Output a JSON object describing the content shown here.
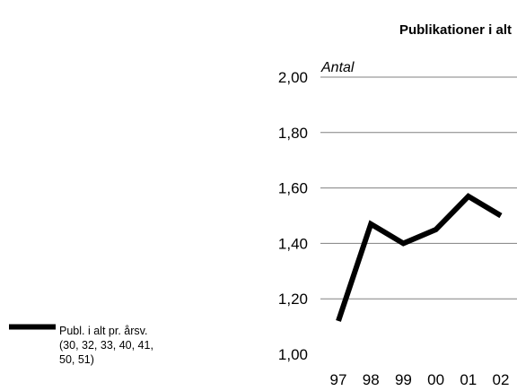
{
  "chart_data": {
    "type": "line",
    "title": "Publikationer i alt",
    "ylabel": "Antal",
    "xlabel": "",
    "categories": [
      "97",
      "98",
      "99",
      "00",
      "01",
      "02"
    ],
    "series": [
      {
        "name": "Publ. i alt pr. årsv. (30, 32, 33, 40, 41, 50, 51)",
        "name_lines": [
          "Publ. i alt pr. årsv.",
          "(30, 32, 33, 40, 41,",
          "50, 51)"
        ],
        "values": [
          1.12,
          1.47,
          1.4,
          1.45,
          1.57,
          1.5
        ],
        "color": "#000000"
      }
    ],
    "ylim": [
      1.0,
      2.0
    ],
    "yticks": [
      "1,00",
      "1,20",
      "1,40",
      "1,60",
      "1,80",
      "2,00"
    ],
    "ytick_values": [
      1.0,
      1.2,
      1.4,
      1.6,
      1.8,
      2.0
    ],
    "grid": true,
    "legend": "left",
    "gridline_color": "#808080"
  }
}
